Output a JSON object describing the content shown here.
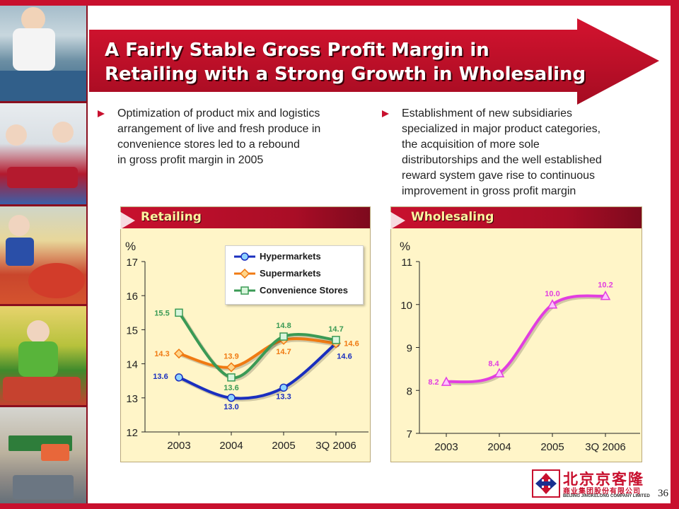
{
  "slide": {
    "title_line1": "A Fairly Stable Gross Profit Margin in",
    "title_line2": "Retailing with a Strong Growth in Wholesaling",
    "page_number": "36"
  },
  "bullets": [
    {
      "text": "Optimization of product mix and logistics\narrangement of live and fresh produce in\nconvenience stores led to a rebound\nin gross profit margin in 2005"
    },
    {
      "text": "Establishment of new subsidiaries\nspecialized in major product categories,\nthe acquisition of more sole\ndistributorships and the well established\nreward system gave rise to continuous\nimprovement in gross profit margin"
    }
  ],
  "logo": {
    "chinese_name": "北京京客隆",
    "chinese_sub": "商业集团股份有限公司",
    "english_name": "BEIJING JINGKELONG COMPANY LIMITED"
  },
  "colors": {
    "brand_red": "#c8102e",
    "panel_bg": "#fff5c8",
    "hypermarkets": "#1a2fbf",
    "supermarkets": "#f07a12",
    "convenience": "#3a9a55",
    "wholesaling": "#e23ee0"
  },
  "chart_data": [
    {
      "type": "line",
      "panel_label": "Retailing",
      "ylabel": "%",
      "categories": [
        "2003",
        "2004",
        "2005",
        "3Q 2006"
      ],
      "ylim": [
        12,
        17
      ],
      "yticks": [
        12,
        13,
        14,
        15,
        16,
        17
      ],
      "legend": "top-right",
      "series": [
        {
          "name": "Hypermarkets",
          "color": "#1a2fbf",
          "marker": "circle",
          "values": [
            13.6,
            13.0,
            13.3,
            14.6
          ]
        },
        {
          "name": "Supermarkets",
          "color": "#f07a12",
          "marker": "diamond",
          "values": [
            14.3,
            13.9,
            14.7,
            14.6
          ]
        },
        {
          "name": "Convenience Stores",
          "color": "#3a9a55",
          "marker": "square",
          "values": [
            15.5,
            13.6,
            14.8,
            14.7
          ]
        }
      ]
    },
    {
      "type": "line",
      "panel_label": "Wholesaling",
      "ylabel": "%",
      "categories": [
        "2003",
        "2004",
        "2005",
        "3Q 2006"
      ],
      "ylim": [
        7,
        11
      ],
      "yticks": [
        7,
        8,
        9,
        10,
        11
      ],
      "series": [
        {
          "name": "",
          "color": "#e23ee0",
          "marker": "triangle",
          "values": [
            8.2,
            8.4,
            10.0,
            10.2
          ]
        }
      ]
    }
  ]
}
